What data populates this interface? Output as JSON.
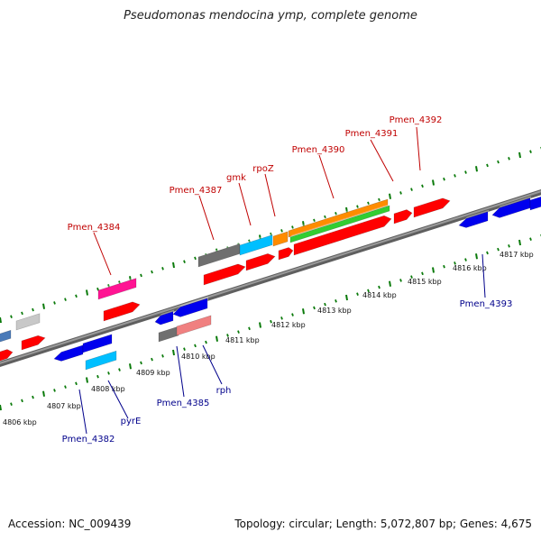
{
  "title": "Pseudomonas mendocina ymp, complete genome",
  "footer": {
    "accession": "Accession: NC_009439",
    "summary": "Topology: circular; Length: 5,072,807 bp; Genes: 4,675"
  },
  "colors": {
    "forward_label": "#c00000",
    "reverse_label": "#00008b",
    "backbone": "#7f7f7f",
    "ticks": "#0a7a0a"
  },
  "scale_labels": [
    "4806 kbp",
    "4807 kbp",
    "4808 kbp",
    "4809 kbp",
    "4810 kbp",
    "4811 kbp",
    "4812 kbp",
    "4813 kbp",
    "4814 kbp",
    "4815 kbp",
    "4816 kbp",
    "4817 kbp"
  ],
  "forward_labels": [
    "Pmen_4384",
    "Pmen_4387",
    "gmk",
    "rpoZ",
    "Pmen_4390",
    "Pmen_4391",
    "Pmen_4392"
  ],
  "reverse_labels": [
    "Pmen_4382",
    "pyrE",
    "Pmen_4385",
    "rph",
    "Pmen_4393"
  ]
}
